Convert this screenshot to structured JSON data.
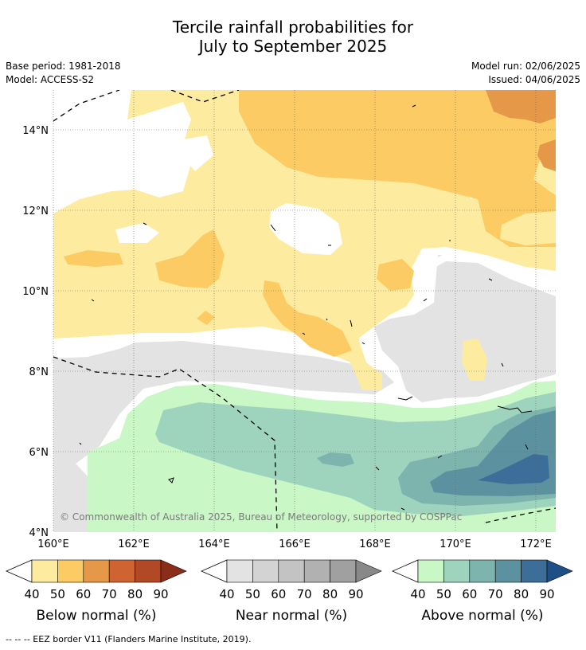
{
  "title": {
    "line1": "Tercile rainfall probabilities for",
    "line2": "July to September 2025"
  },
  "meta": {
    "base_period": "Base period: 1981-2018",
    "model": "Model: ACCESS-S2",
    "model_run": "Model run: 02/06/2025",
    "issued": "Issued: 04/06/2025"
  },
  "map": {
    "lat_labels": [
      "14°N",
      "12°N",
      "10°N",
      "8°N",
      "6°N",
      "4°N"
    ],
    "lon_labels": [
      "160°E",
      "162°E",
      "164°E",
      "166°E",
      "168°E",
      "170°E",
      "172°E"
    ],
    "copyright": "© Commonwealth of Australia 2025, Bureau of Meteorology, supported by COSPPac"
  },
  "colorbars": [
    {
      "title": "Below normal (%)",
      "ticks": [
        "40",
        "50",
        "60",
        "70",
        "80",
        "90"
      ],
      "colors": [
        "#fdeba0",
        "#fdcb63",
        "#e49848",
        "#cf6432",
        "#b24926",
        "#8c2d19"
      ]
    },
    {
      "title": "Near normal (%)",
      "ticks": [
        "40",
        "50",
        "60",
        "70",
        "80",
        "90"
      ],
      "colors": [
        "#e3e3e3",
        "#d3d3d3",
        "#c3c3c3",
        "#b1b1b1",
        "#a0a0a0",
        "#888888"
      ]
    },
    {
      "title": "Above normal (%)",
      "ticks": [
        "40",
        "50",
        "60",
        "70",
        "80",
        "90"
      ],
      "colors": [
        "#c9f7c5",
        "#9ed4bd",
        "#7db5ae",
        "#5c92a0",
        "#3d6e9a",
        "#1e4f86"
      ]
    }
  ],
  "footnote": "--  --  -- EEZ border V11 (Flanders Marine Institute, 2019)."
}
